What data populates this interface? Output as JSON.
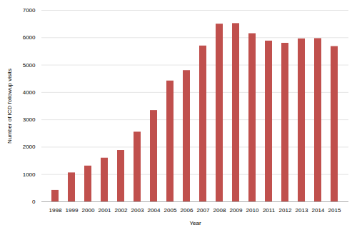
{
  "chart_data": {
    "type": "bar",
    "categories": [
      "1998",
      "1999",
      "2000",
      "2001",
      "2002",
      "2003",
      "2004",
      "2005",
      "2006",
      "2007",
      "2008",
      "2009",
      "2010",
      "2011",
      "2012",
      "2013",
      "2014",
      "2015"
    ],
    "values": [
      420,
      1060,
      1310,
      1600,
      1880,
      2550,
      3340,
      4420,
      4800,
      5700,
      6500,
      6520,
      6150,
      5880,
      5800,
      5960,
      5970,
      5680
    ],
    "color": "#c0504d",
    "xlabel": "Year",
    "ylabel": "Number of ICD followup visits",
    "ylim": [
      0,
      7000
    ],
    "yticks": [
      0,
      1000,
      2000,
      3000,
      4000,
      5000,
      6000,
      7000
    ],
    "grid": true
  }
}
